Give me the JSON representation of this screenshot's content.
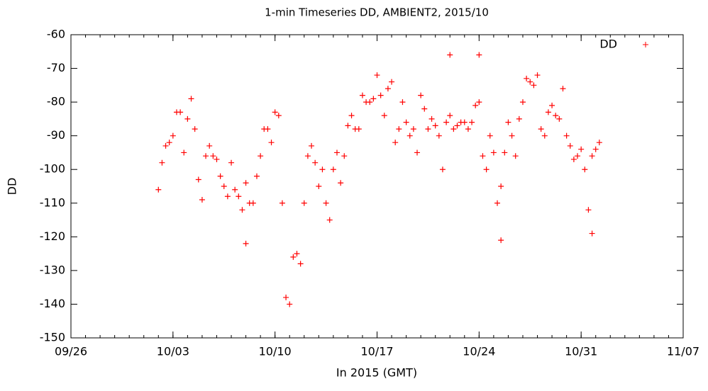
{
  "chart_data": {
    "type": "scatter",
    "title": "1-min Timeseries DD, AMBIENT2, 2015/10",
    "x_label": "In 2015 (GMT)",
    "y_label": "DD",
    "xlim": [
      "09/26",
      "11/07"
    ],
    "xticks": [
      "09/26",
      "10/03",
      "10/10",
      "10/17",
      "10/24",
      "10/31",
      "11/07"
    ],
    "ylim": [
      -150,
      -60
    ],
    "yticks": [
      -150,
      -140,
      -130,
      -120,
      -110,
      -100,
      -90,
      -80,
      -70,
      -60
    ],
    "legend": "top-right",
    "series": [
      {
        "name": "DD",
        "color": "#ff0000",
        "x": [
          "10/02 00:00",
          "10/02 06:00",
          "10/02 12:00",
          "10/02 18:00",
          "10/03 00:00",
          "10/03 06:00",
          "10/03 12:00",
          "10/03 18:00",
          "10/04 00:00",
          "10/04 06:00",
          "10/04 12:00",
          "10/04 18:00",
          "10/05 00:00",
          "10/05 06:00",
          "10/05 12:00",
          "10/05 18:00",
          "10/06 00:00",
          "10/06 06:00",
          "10/06 12:00",
          "10/06 18:00",
          "10/07 00:00",
          "10/07 06:00",
          "10/07 12:00",
          "10/07 18:00",
          "10/08 00:00",
          "10/08 06:00",
          "10/08 12:00",
          "10/08 18:00",
          "10/09 00:00",
          "10/09 06:00",
          "10/09 12:00",
          "10/09 18:00",
          "10/10 00:00",
          "10/10 06:00",
          "10/10 12:00",
          "10/10 18:00",
          "10/11 00:00",
          "10/11 06:00",
          "10/11 12:00",
          "10/11 18:00",
          "10/12 00:00",
          "10/12 06:00",
          "10/12 12:00",
          "10/12 18:00",
          "10/13 00:00",
          "10/13 06:00",
          "10/13 12:00",
          "10/13 18:00",
          "10/14 00:00",
          "10/14 06:00",
          "10/14 12:00",
          "10/14 18:00",
          "10/15 00:00",
          "10/15 06:00",
          "10/15 12:00",
          "10/15 18:00",
          "10/16 00:00",
          "10/16 06:00",
          "10/16 12:00",
          "10/16 18:00",
          "10/17 00:00",
          "10/17 06:00",
          "10/17 12:00",
          "10/17 18:00",
          "10/18 00:00",
          "10/18 06:00",
          "10/18 12:00",
          "10/18 18:00",
          "10/19 00:00",
          "10/19 06:00",
          "10/19 12:00",
          "10/19 18:00",
          "10/20 00:00",
          "10/20 06:00",
          "10/20 12:00",
          "10/20 18:00",
          "10/21 00:00",
          "10/21 06:00",
          "10/21 12:00",
          "10/21 18:00",
          "10/22 00:00",
          "10/22 06:00",
          "10/22 12:00",
          "10/22 18:00",
          "10/23 00:00",
          "10/23 06:00",
          "10/23 12:00",
          "10/23 18:00",
          "10/24 00:00",
          "10/24 06:00",
          "10/24 12:00",
          "10/24 18:00",
          "10/25 00:00",
          "10/25 06:00",
          "10/25 12:00",
          "10/25 18:00",
          "10/26 00:00",
          "10/26 06:00",
          "10/26 12:00",
          "10/26 18:00",
          "10/27 00:00",
          "10/27 06:00",
          "10/27 12:00",
          "10/27 18:00",
          "10/28 00:00",
          "10/28 06:00",
          "10/28 12:00",
          "10/28 18:00",
          "10/29 00:00",
          "10/29 06:00",
          "10/29 12:00",
          "10/29 18:00",
          "10/30 00:00",
          "10/30 06:00",
          "10/30 12:00",
          "10/30 18:00",
          "10/31 00:00",
          "10/31 06:00",
          "10/31 12:00",
          "10/31 18:00",
          "11/01 00:00",
          "11/01 06:00",
          "10/08 00:00",
          "10/22 00:00",
          "10/24 00:00",
          "10/25 12:00",
          "10/31 18:00"
        ],
        "values": [
          -106,
          -98,
          -93,
          -92,
          -90,
          -83,
          -83,
          -95,
          -85,
          -79,
          -88,
          -103,
          -109,
          -96,
          -93,
          -96,
          -97,
          -102,
          -105,
          -108,
          -98,
          -106,
          -108,
          -112,
          -104,
          -110,
          -110,
          -102,
          -96,
          -88,
          -88,
          -92,
          -83,
          -84,
          -110,
          -138,
          -140,
          -126,
          -125,
          -128,
          -110,
          -96,
          -93,
          -98,
          -105,
          -100,
          -110,
          -115,
          -100,
          -95,
          -104,
          -96,
          -87,
          -84,
          -88,
          -88,
          -78,
          -80,
          -80,
          -79,
          -72,
          -78,
          -84,
          -76,
          -74,
          -92,
          -88,
          -80,
          -86,
          -90,
          -88,
          -95,
          -78,
          -82,
          -88,
          -85,
          -87,
          -90,
          -100,
          -86,
          -84,
          -88,
          -87,
          -86,
          -86,
          -88,
          -86,
          -81,
          -80,
          -96,
          -100,
          -90,
          -95,
          -110,
          -105,
          -95,
          -86,
          -90,
          -96,
          -85,
          -80,
          -73,
          -74,
          -75,
          -72,
          -88,
          -90,
          -83,
          -81,
          -84,
          -85,
          -76,
          -90,
          -93,
          -97,
          -96,
          -94,
          -100,
          -112,
          -96,
          -94,
          -92,
          -122,
          -66,
          -66,
          -121,
          -119
        ]
      }
    ]
  }
}
